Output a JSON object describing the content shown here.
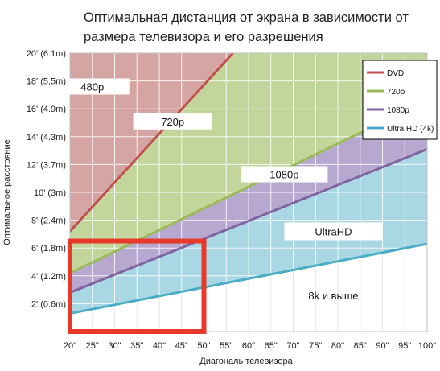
{
  "title": "Оптимальная дистанция от экрана в зависимости от размера телевизора и его разрешения",
  "chart_data": {
    "type": "line",
    "xlabel": "Диагональ телевизора",
    "ylabel": "Оптимальное расстояние",
    "x_ticks": [
      "20\"",
      "25\"",
      "30\"",
      "35\"",
      "40\"",
      "45\"",
      "50\"",
      "55\"",
      "60\"",
      "65\"",
      "70\"",
      "75\"",
      "80\"",
      "85\"",
      "90\"",
      "95\"",
      "100\""
    ],
    "x_values": [
      20,
      25,
      30,
      35,
      40,
      45,
      50,
      55,
      60,
      65,
      70,
      75,
      80,
      85,
      90,
      95,
      100
    ],
    "xlim": [
      20,
      100
    ],
    "y_ticks": [
      "2' (0.6m)",
      "4' (1.2m)",
      "6' (1.8m)",
      "8' (2.4m)",
      "10' (3m)",
      "12' (3.7m)",
      "14' (4.3m)",
      "16' (4.9m)",
      "18' (5.5m)",
      "20' (6.1m)"
    ],
    "y_tick_values": [
      2,
      4,
      6,
      8,
      10,
      12,
      14,
      16,
      18,
      20
    ],
    "ylim": [
      0,
      20
    ],
    "grid": true,
    "legend_position": "top-right",
    "series": [
      {
        "name": "DVD",
        "color": "#c0504d",
        "x": [
          20,
          56.5
        ],
        "y": [
          7.2,
          20
        ]
      },
      {
        "name": "720p",
        "color": "#9bbb59",
        "x": [
          20,
          100
        ],
        "y": [
          4.2,
          16.6
        ]
      },
      {
        "name": "1080p",
        "color": "#8064a2",
        "x": [
          20,
          100
        ],
        "y": [
          2.8,
          13.1
        ]
      },
      {
        "name": "Ultra HD (4k)",
        "color": "#4bacc6",
        "x": [
          20,
          100
        ],
        "y": [
          1.3,
          6.3
        ]
      }
    ],
    "zones": [
      {
        "label": "480p",
        "fill": "#d5a5a4",
        "x": 25,
        "y": 17.6
      },
      {
        "label": "720p",
        "fill": "#c2d69b",
        "x": 43,
        "y": 15.1
      },
      {
        "label": "1080p",
        "fill": "#b6a8cf",
        "x": 68,
        "y": 11.3
      },
      {
        "label": "UltraHD",
        "fill": "#a9d7e4",
        "x": 79,
        "y": 7.2
      },
      {
        "label": "8k и выше",
        "fill": "#ffffff",
        "x": 79,
        "y": 2.6
      }
    ],
    "highlight": {
      "color": "#e8392a",
      "x": [
        20,
        50
      ],
      "y": [
        0,
        6.5
      ]
    }
  }
}
